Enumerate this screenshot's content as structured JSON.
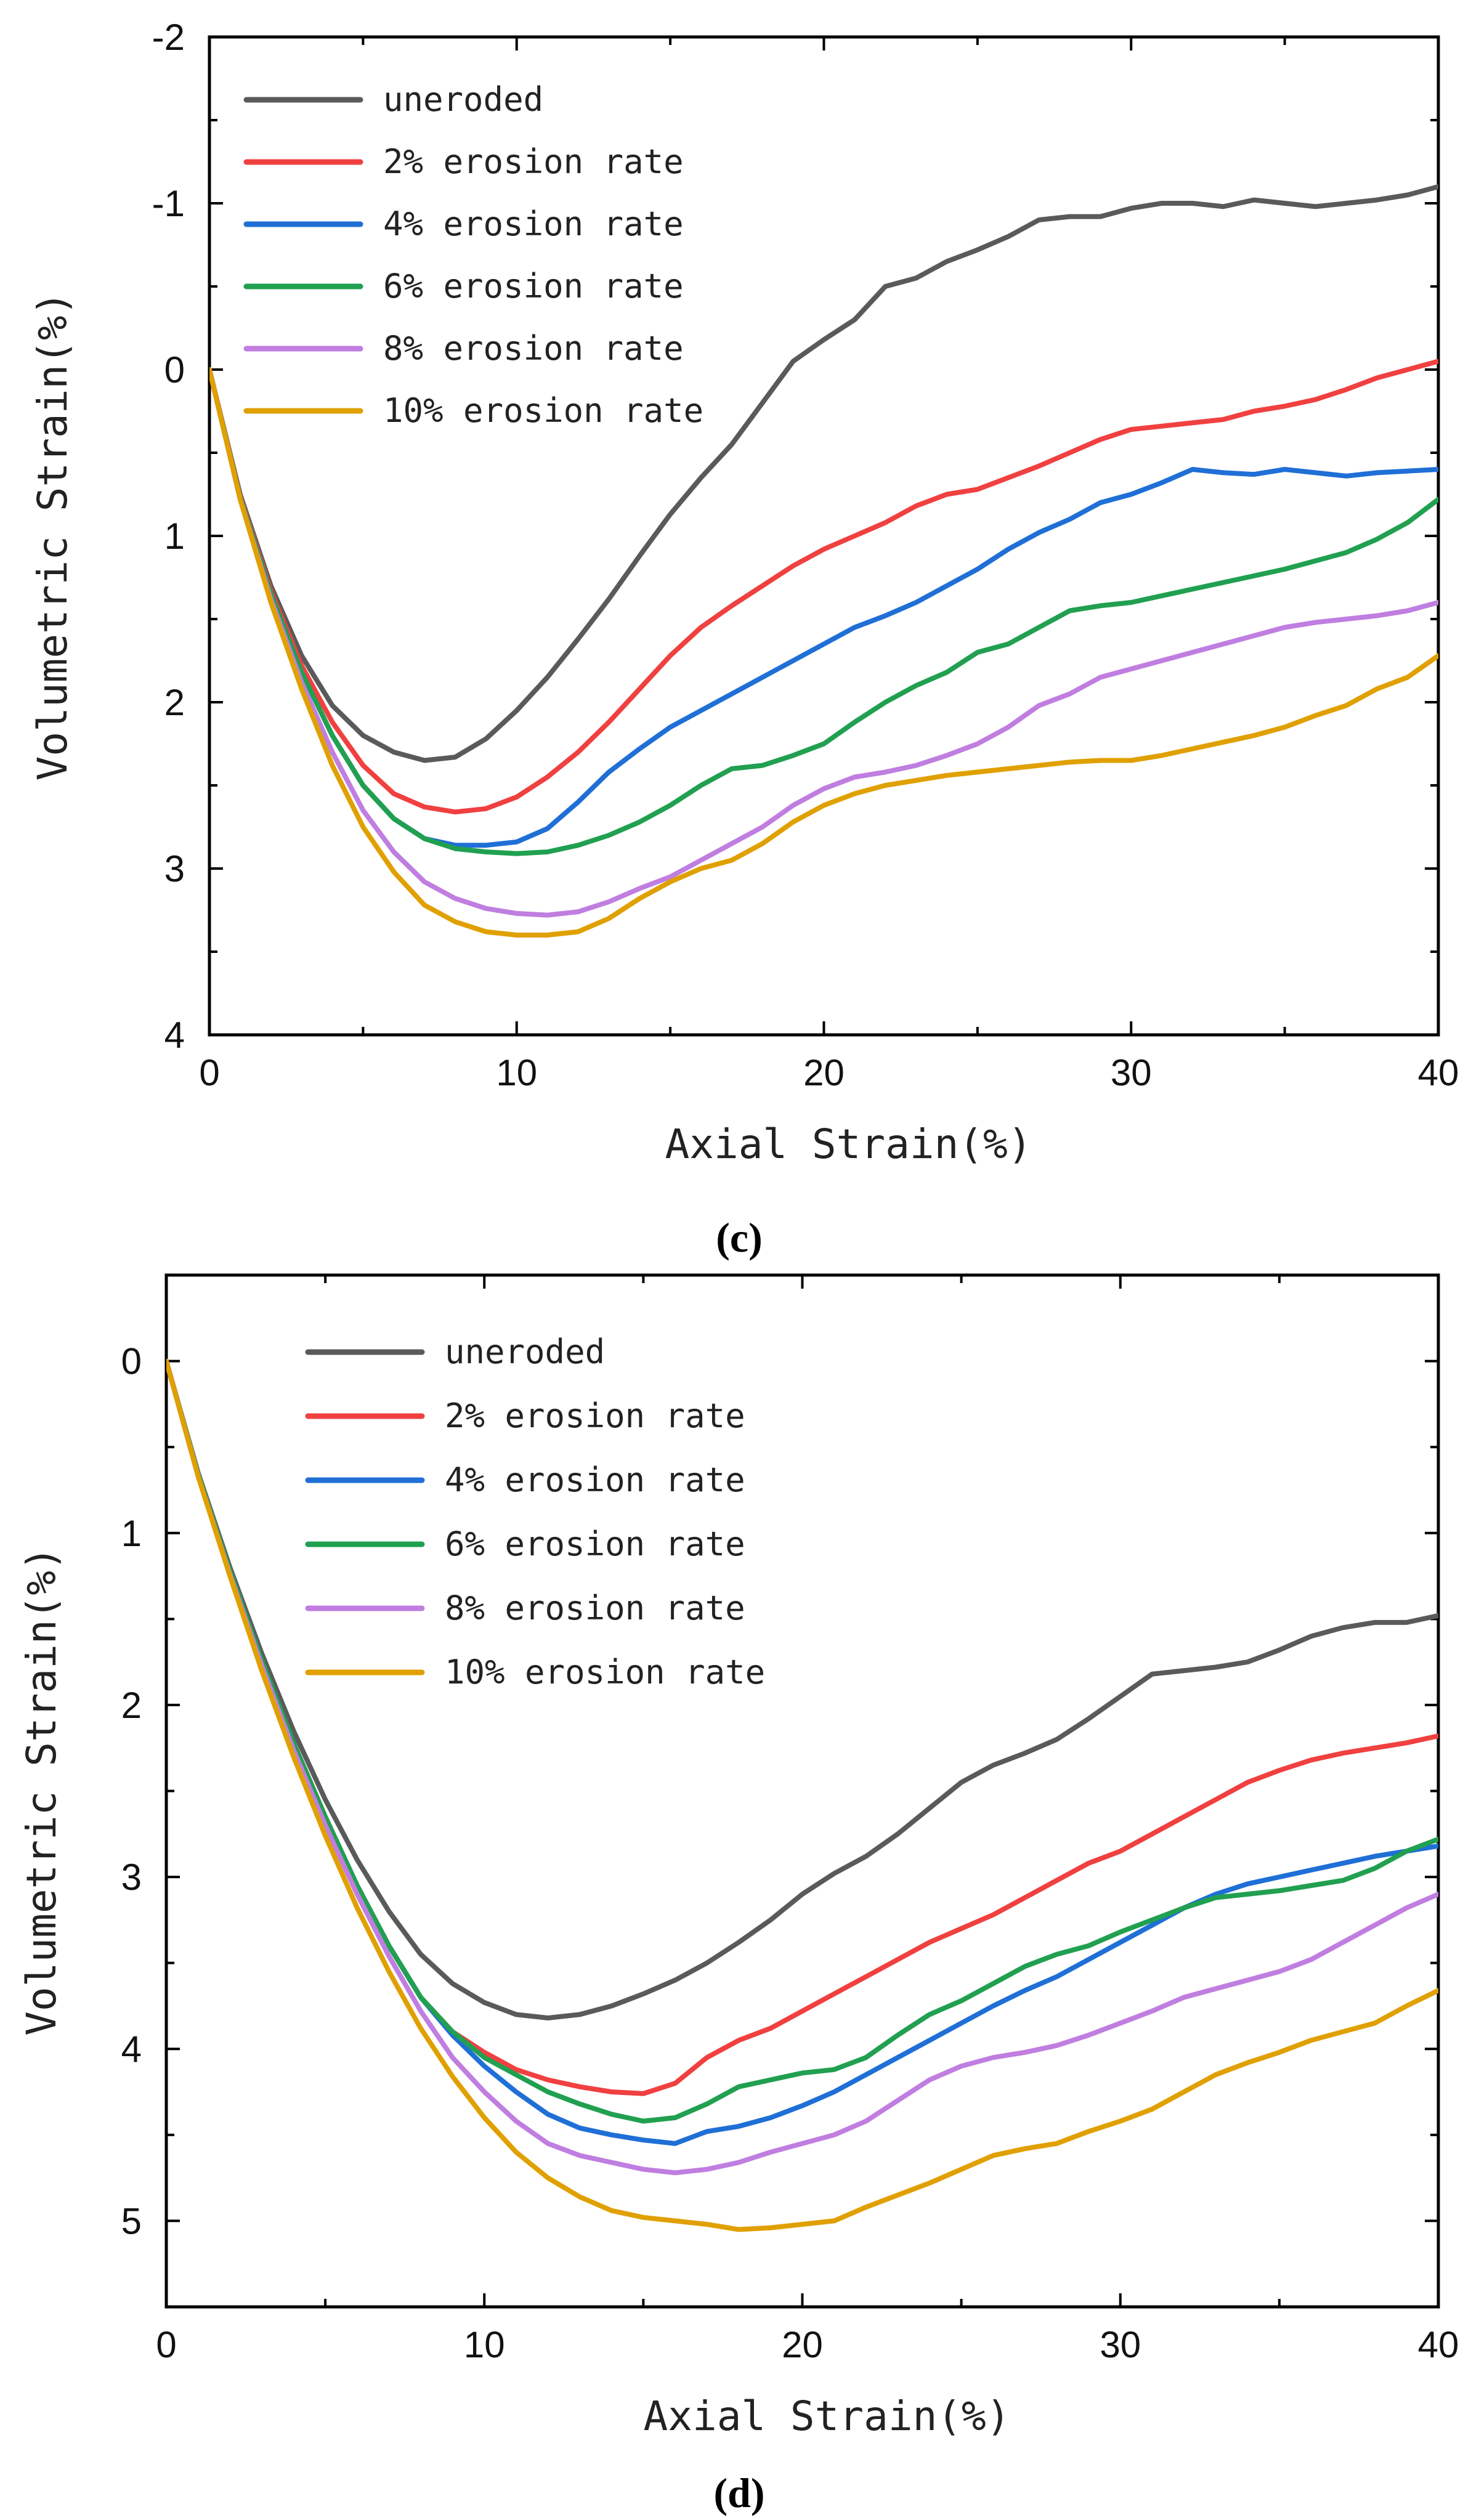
{
  "chart_data": [
    {
      "type": "line",
      "panel_label": "(c)",
      "title": "",
      "xlabel": "Axial Strain(%)",
      "ylabel": "Volumetric Strain(%)",
      "xlim": [
        0,
        40
      ],
      "ylim": [
        -2,
        4
      ],
      "y_inverted": true,
      "x_ticks": [
        0,
        10,
        20,
        30,
        40
      ],
      "y_ticks": [
        -2,
        -1,
        0,
        1,
        2,
        3,
        4
      ],
      "legend_position": "top-left",
      "series": [
        {
          "name": "uneroded",
          "color": "#5a5a5a",
          "x": [
            0,
            1,
            2,
            3,
            4,
            5,
            6,
            7,
            8,
            9,
            10,
            11,
            12,
            13,
            14,
            15,
            16,
            17,
            18,
            19,
            20,
            21,
            22,
            23,
            24,
            25,
            26,
            27,
            28,
            29,
            30,
            31,
            32,
            33,
            34,
            35,
            36,
            37,
            38,
            39,
            40
          ],
          "y": [
            0,
            0.75,
            1.3,
            1.72,
            2.02,
            2.2,
            2.3,
            2.35,
            2.33,
            2.22,
            2.05,
            1.85,
            1.62,
            1.38,
            1.12,
            0.87,
            0.65,
            0.45,
            0.2,
            -0.05,
            -0.18,
            -0.3,
            -0.5,
            -0.55,
            -0.65,
            -0.72,
            -0.8,
            -0.9,
            -0.92,
            -0.92,
            -0.97,
            -1.0,
            -1.0,
            -0.98,
            -1.02,
            -1.0,
            -0.98,
            -1.0,
            -1.02,
            -1.05,
            -1.1
          ]
        },
        {
          "name": "2% erosion rate",
          "color": "#f04040",
          "x": [
            0,
            1,
            2,
            3,
            4,
            5,
            6,
            7,
            8,
            9,
            10,
            11,
            12,
            13,
            14,
            15,
            16,
            17,
            18,
            19,
            20,
            21,
            22,
            23,
            24,
            25,
            26,
            27,
            28,
            29,
            30,
            31,
            32,
            33,
            34,
            35,
            36,
            37,
            38,
            39,
            40
          ],
          "y": [
            0,
            0.76,
            1.33,
            1.78,
            2.12,
            2.38,
            2.55,
            2.63,
            2.66,
            2.64,
            2.57,
            2.45,
            2.3,
            2.12,
            1.92,
            1.72,
            1.55,
            1.42,
            1.3,
            1.18,
            1.08,
            1.0,
            0.92,
            0.82,
            0.75,
            0.72,
            0.65,
            0.58,
            0.5,
            0.42,
            0.36,
            0.34,
            0.32,
            0.3,
            0.25,
            0.22,
            0.18,
            0.12,
            0.05,
            0.0,
            -0.05
          ]
        },
        {
          "name": "4% erosion rate",
          "color": "#1f6fd6",
          "x": [
            0,
            1,
            2,
            3,
            4,
            5,
            6,
            7,
            8,
            9,
            10,
            11,
            12,
            13,
            14,
            15,
            16,
            17,
            18,
            19,
            20,
            21,
            22,
            23,
            24,
            25,
            26,
            27,
            28,
            29,
            30,
            31,
            32,
            33,
            34,
            35,
            36,
            37,
            38,
            39,
            40
          ],
          "y": [
            0,
            0.77,
            1.35,
            1.82,
            2.2,
            2.5,
            2.7,
            2.82,
            2.86,
            2.86,
            2.84,
            2.76,
            2.6,
            2.42,
            2.28,
            2.15,
            2.05,
            1.95,
            1.85,
            1.75,
            1.65,
            1.55,
            1.48,
            1.4,
            1.3,
            1.2,
            1.08,
            0.98,
            0.9,
            0.8,
            0.75,
            0.68,
            0.6,
            0.62,
            0.63,
            0.6,
            0.62,
            0.64,
            0.62,
            0.61,
            0.6
          ]
        },
        {
          "name": "6% erosion rate",
          "color": "#20a050",
          "x": [
            0,
            1,
            2,
            3,
            4,
            5,
            6,
            7,
            8,
            9,
            10,
            11,
            12,
            13,
            14,
            15,
            16,
            17,
            18,
            19,
            20,
            21,
            22,
            23,
            24,
            25,
            26,
            27,
            28,
            29,
            30,
            31,
            32,
            33,
            34,
            35,
            36,
            37,
            38,
            39,
            40
          ],
          "y": [
            0,
            0.77,
            1.35,
            1.82,
            2.2,
            2.5,
            2.7,
            2.82,
            2.88,
            2.9,
            2.91,
            2.9,
            2.86,
            2.8,
            2.72,
            2.62,
            2.5,
            2.4,
            2.38,
            2.32,
            2.25,
            2.12,
            2.0,
            1.9,
            1.82,
            1.7,
            1.65,
            1.55,
            1.45,
            1.42,
            1.4,
            1.36,
            1.32,
            1.28,
            1.24,
            1.2,
            1.15,
            1.1,
            1.02,
            0.92,
            0.78
          ]
        },
        {
          "name": "8% erosion rate",
          "color": "#c07ee0",
          "x": [
            0,
            1,
            2,
            3,
            4,
            5,
            6,
            7,
            8,
            9,
            10,
            11,
            12,
            13,
            14,
            15,
            16,
            17,
            18,
            19,
            20,
            21,
            22,
            23,
            24,
            25,
            26,
            27,
            28,
            29,
            30,
            31,
            32,
            33,
            34,
            35,
            36,
            37,
            38,
            39,
            40
          ],
          "y": [
            0,
            0.78,
            1.38,
            1.88,
            2.3,
            2.65,
            2.9,
            3.08,
            3.18,
            3.24,
            3.27,
            3.28,
            3.26,
            3.2,
            3.12,
            3.05,
            2.95,
            2.85,
            2.75,
            2.62,
            2.52,
            2.45,
            2.42,
            2.38,
            2.32,
            2.25,
            2.15,
            2.02,
            1.95,
            1.85,
            1.8,
            1.75,
            1.7,
            1.65,
            1.6,
            1.55,
            1.52,
            1.5,
            1.48,
            1.45,
            1.4
          ]
        },
        {
          "name": "10% erosion rate",
          "color": "#e0a000",
          "x": [
            0,
            1,
            2,
            3,
            4,
            5,
            6,
            7,
            8,
            9,
            10,
            11,
            12,
            13,
            14,
            15,
            16,
            17,
            18,
            19,
            20,
            21,
            22,
            23,
            24,
            25,
            26,
            27,
            28,
            29,
            30,
            31,
            32,
            33,
            34,
            35,
            36,
            37,
            38,
            39,
            40
          ],
          "y": [
            0,
            0.78,
            1.4,
            1.92,
            2.38,
            2.75,
            3.02,
            3.22,
            3.32,
            3.38,
            3.4,
            3.4,
            3.38,
            3.3,
            3.18,
            3.08,
            3.0,
            2.95,
            2.85,
            2.72,
            2.62,
            2.55,
            2.5,
            2.47,
            2.44,
            2.42,
            2.4,
            2.38,
            2.36,
            2.35,
            2.35,
            2.32,
            2.28,
            2.24,
            2.2,
            2.15,
            2.08,
            2.02,
            1.92,
            1.85,
            1.72
          ]
        }
      ]
    },
    {
      "type": "line",
      "panel_label": "(d)",
      "title": "",
      "xlabel": "Axial Strain(%)",
      "ylabel": "Volumetric Strain(%)",
      "xlim": [
        0,
        40
      ],
      "ylim": [
        -0.5,
        5.5
      ],
      "y_inverted": true,
      "x_ticks": [
        0,
        10,
        20,
        30,
        40
      ],
      "y_ticks": [
        0,
        1,
        2,
        3,
        4,
        5
      ],
      "legend_position": "top-left",
      "series": [
        {
          "name": "uneroded",
          "color": "#5a5a5a",
          "x": [
            0,
            1,
            2,
            3,
            4,
            5,
            6,
            7,
            8,
            9,
            10,
            11,
            12,
            13,
            14,
            15,
            16,
            17,
            18,
            19,
            20,
            21,
            22,
            23,
            24,
            25,
            26,
            27,
            28,
            29,
            30,
            31,
            32,
            33,
            34,
            35,
            36,
            37,
            38,
            39,
            40
          ],
          "y": [
            0,
            0.65,
            1.2,
            1.7,
            2.15,
            2.55,
            2.9,
            3.2,
            3.45,
            3.62,
            3.73,
            3.8,
            3.82,
            3.8,
            3.75,
            3.68,
            3.6,
            3.5,
            3.38,
            3.25,
            3.1,
            2.98,
            2.88,
            2.75,
            2.6,
            2.45,
            2.35,
            2.28,
            2.2,
            2.08,
            1.95,
            1.82,
            1.8,
            1.78,
            1.75,
            1.68,
            1.6,
            1.55,
            1.52,
            1.52,
            1.48
          ]
        },
        {
          "name": "2% erosion rate",
          "color": "#f04040",
          "x": [
            0,
            1,
            2,
            3,
            4,
            5,
            6,
            7,
            8,
            9,
            10,
            11,
            12,
            13,
            14,
            15,
            16,
            17,
            18,
            19,
            20,
            21,
            22,
            23,
            24,
            25,
            26,
            27,
            28,
            29,
            30,
            31,
            32,
            33,
            34,
            35,
            36,
            37,
            38,
            39,
            40
          ],
          "y": [
            0,
            0.66,
            1.22,
            1.74,
            2.22,
            2.65,
            3.05,
            3.4,
            3.7,
            3.9,
            4.02,
            4.12,
            4.18,
            4.22,
            4.25,
            4.26,
            4.2,
            4.05,
            3.95,
            3.88,
            3.78,
            3.68,
            3.58,
            3.48,
            3.38,
            3.3,
            3.22,
            3.12,
            3.02,
            2.92,
            2.85,
            2.75,
            2.65,
            2.55,
            2.45,
            2.38,
            2.32,
            2.28,
            2.25,
            2.22,
            2.18
          ]
        },
        {
          "name": "4% erosion rate",
          "color": "#1f6fd6",
          "x": [
            0,
            1,
            2,
            3,
            4,
            5,
            6,
            7,
            8,
            9,
            10,
            11,
            12,
            13,
            14,
            15,
            16,
            17,
            18,
            19,
            20,
            21,
            22,
            23,
            24,
            25,
            26,
            27,
            28,
            29,
            30,
            31,
            32,
            33,
            34,
            35,
            36,
            37,
            38,
            39,
            40
          ],
          "y": [
            0,
            0.66,
            1.22,
            1.74,
            2.22,
            2.65,
            3.05,
            3.4,
            3.7,
            3.92,
            4.1,
            4.25,
            4.38,
            4.46,
            4.5,
            4.53,
            4.55,
            4.48,
            4.45,
            4.4,
            4.33,
            4.25,
            4.15,
            4.05,
            3.95,
            3.85,
            3.75,
            3.66,
            3.58,
            3.48,
            3.38,
            3.28,
            3.18,
            3.1,
            3.04,
            3.0,
            2.96,
            2.92,
            2.88,
            2.85,
            2.82
          ]
        },
        {
          "name": "6% erosion rate",
          "color": "#20a050",
          "x": [
            0,
            1,
            2,
            3,
            4,
            5,
            6,
            7,
            8,
            9,
            10,
            11,
            12,
            13,
            14,
            15,
            16,
            17,
            18,
            19,
            20,
            21,
            22,
            23,
            24,
            25,
            26,
            27,
            28,
            29,
            30,
            31,
            32,
            33,
            34,
            35,
            36,
            37,
            38,
            39,
            40
          ],
          "y": [
            0,
            0.66,
            1.22,
            1.74,
            2.22,
            2.65,
            3.05,
            3.4,
            3.7,
            3.9,
            4.05,
            4.15,
            4.25,
            4.32,
            4.38,
            4.42,
            4.4,
            4.32,
            4.22,
            4.18,
            4.14,
            4.12,
            4.05,
            3.92,
            3.8,
            3.72,
            3.62,
            3.52,
            3.45,
            3.4,
            3.32,
            3.25,
            3.18,
            3.12,
            3.1,
            3.08,
            3.05,
            3.02,
            2.95,
            2.85,
            2.78
          ]
        },
        {
          "name": "8% erosion rate",
          "color": "#c07ee0",
          "x": [
            0,
            1,
            2,
            3,
            4,
            5,
            6,
            7,
            8,
            9,
            10,
            11,
            12,
            13,
            14,
            15,
            16,
            17,
            18,
            19,
            20,
            21,
            22,
            23,
            24,
            25,
            26,
            27,
            28,
            29,
            30,
            31,
            32,
            33,
            34,
            35,
            36,
            37,
            38,
            39,
            40
          ],
          "y": [
            0,
            0.67,
            1.24,
            1.77,
            2.26,
            2.7,
            3.1,
            3.46,
            3.78,
            4.05,
            4.25,
            4.42,
            4.55,
            4.62,
            4.66,
            4.7,
            4.72,
            4.7,
            4.66,
            4.6,
            4.55,
            4.5,
            4.42,
            4.3,
            4.18,
            4.1,
            4.05,
            4.02,
            3.98,
            3.92,
            3.85,
            3.78,
            3.7,
            3.65,
            3.6,
            3.55,
            3.48,
            3.38,
            3.28,
            3.18,
            3.1
          ]
        },
        {
          "name": "10% erosion rate",
          "color": "#e0a000",
          "x": [
            0,
            1,
            2,
            3,
            4,
            5,
            6,
            7,
            8,
            9,
            10,
            11,
            12,
            13,
            14,
            15,
            16,
            17,
            18,
            19,
            20,
            21,
            22,
            23,
            24,
            25,
            26,
            27,
            28,
            29,
            30,
            31,
            32,
            33,
            34,
            35,
            36,
            37,
            38,
            39,
            40
          ],
          "y": [
            0,
            0.67,
            1.25,
            1.8,
            2.3,
            2.76,
            3.18,
            3.55,
            3.88,
            4.16,
            4.4,
            4.6,
            4.75,
            4.86,
            4.94,
            4.98,
            5.0,
            5.02,
            5.05,
            5.04,
            5.02,
            5.0,
            4.92,
            4.85,
            4.78,
            4.7,
            4.62,
            4.58,
            4.55,
            4.48,
            4.42,
            4.35,
            4.25,
            4.15,
            4.08,
            4.02,
            3.95,
            3.9,
            3.85,
            3.75,
            3.66
          ]
        }
      ]
    }
  ]
}
